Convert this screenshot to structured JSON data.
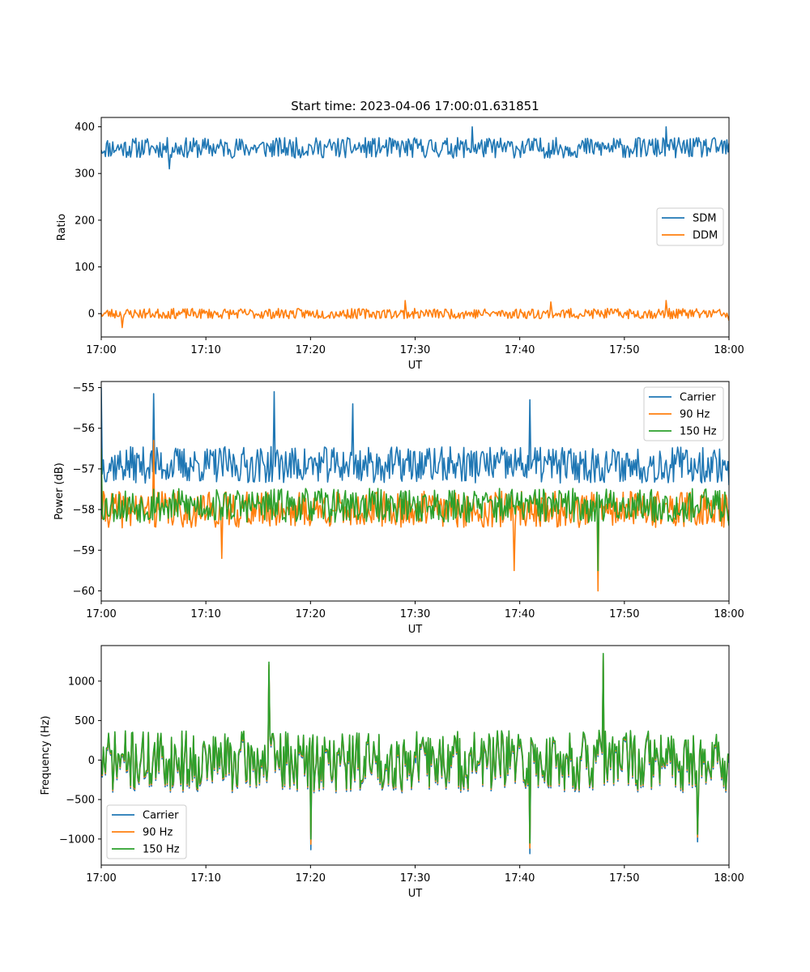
{
  "figure": {
    "title": "Start time: 2023-04-06 17:00:01.631851"
  },
  "colors": {
    "blue": "#1f77b4",
    "orange": "#ff7f0e",
    "green": "#2ca02c",
    "background": "#ffffff",
    "axes": "#000000"
  },
  "chart_data": [
    {
      "type": "line",
      "title": "Start time: 2023-04-06 17:00:01.631851",
      "xlabel": "UT",
      "ylabel": "Ratio",
      "xlim": [
        "17:00",
        "18:00"
      ],
      "ylim": [
        -50,
        420
      ],
      "xticks": [
        "17:00",
        "17:10",
        "17:20",
        "17:30",
        "17:40",
        "17:50",
        "18:00"
      ],
      "yticks": [
        0,
        100,
        200,
        300,
        400
      ],
      "grid": false,
      "legend": "center-right",
      "series": [
        {
          "name": "SDM",
          "color": "#1f77b4",
          "x": [
            "17:00",
            "17:05",
            "17:06:30",
            "17:10",
            "17:20",
            "17:27",
            "17:30",
            "17:35:30",
            "17:40",
            "17:45",
            "17:50",
            "17:54",
            "18:00"
          ],
          "values": [
            350,
            355,
            310,
            352,
            360,
            355,
            365,
            400,
            350,
            345,
            360,
            400,
            365
          ]
        },
        {
          "name": "DDM",
          "color": "#ff7f0e",
          "x": [
            "17:00",
            "17:02",
            "17:05",
            "17:10",
            "17:20",
            "17:29",
            "17:30",
            "17:40",
            "17:43",
            "17:50",
            "17:54",
            "18:00"
          ],
          "values": [
            0,
            -30,
            -5,
            5,
            -5,
            28,
            0,
            0,
            25,
            0,
            28,
            -15
          ]
        }
      ]
    },
    {
      "type": "line",
      "title": "",
      "xlabel": "UT",
      "ylabel": "Power (dB)",
      "xlim": [
        "17:00",
        "18:00"
      ],
      "ylim": [
        -60.25,
        -54.85
      ],
      "xticks": [
        "17:00",
        "17:10",
        "17:20",
        "17:30",
        "17:40",
        "17:50",
        "18:00"
      ],
      "yticks": [
        -55,
        -56,
        -57,
        -58,
        -59,
        -60
      ],
      "grid": false,
      "legend": "top-right",
      "series": [
        {
          "name": "Carrier",
          "color": "#1f77b4",
          "x": [
            "17:00",
            "17:05",
            "17:10",
            "17:16:30",
            "17:24",
            "17:30",
            "17:41",
            "17:50",
            "18:00"
          ],
          "values": [
            -55.0,
            -55.15,
            -57.0,
            -55.1,
            -55.4,
            -57.0,
            -55.3,
            -56.8,
            -57.4
          ]
        },
        {
          "name": "90 Hz",
          "color": "#ff7f0e",
          "x": [
            "17:00",
            "17:05",
            "17:11:30",
            "17:20",
            "17:30",
            "17:39:30",
            "17:47:30",
            "18:00"
          ],
          "values": [
            -57.5,
            -56.3,
            -59.2,
            -58.3,
            -58.0,
            -59.5,
            -60.0,
            -58.0
          ]
        },
        {
          "name": "150 Hz",
          "color": "#2ca02c",
          "x": [
            "17:00",
            "17:05",
            "17:10",
            "17:20",
            "17:30",
            "17:40",
            "17:47:30",
            "18:00"
          ],
          "values": [
            -56.5,
            -57.5,
            -58.0,
            -57.8,
            -58.0,
            -57.8,
            -59.5,
            -58.4
          ]
        }
      ]
    },
    {
      "type": "line",
      "title": "",
      "xlabel": "UT",
      "ylabel": "Frequency (Hz)",
      "xlim": [
        "17:00",
        "18:00"
      ],
      "ylim": [
        -1330,
        1450
      ],
      "xticks": [
        "17:00",
        "17:10",
        "17:20",
        "17:30",
        "17:40",
        "17:50",
        "18:00"
      ],
      "yticks": [
        1000,
        500,
        0,
        -500,
        -1000
      ],
      "grid": false,
      "legend": "bottom-left",
      "series": [
        {
          "name": "Carrier",
          "color": "#1f77b4",
          "x": [
            "17:00",
            "17:16",
            "17:20",
            "17:30",
            "17:41",
            "17:48",
            "17:57",
            "18:00"
          ],
          "values": [
            -50,
            1180,
            -1100,
            0,
            -1150,
            1300,
            -1000,
            0
          ]
        },
        {
          "name": "90 Hz",
          "color": "#ff7f0e",
          "x": [
            "17:00",
            "17:16",
            "17:20",
            "17:30",
            "17:41",
            "17:48",
            "17:57",
            "18:00"
          ],
          "values": [
            0,
            1220,
            -1050,
            50,
            -1100,
            1340,
            -960,
            50
          ]
        },
        {
          "name": "150 Hz",
          "color": "#2ca02c",
          "x": [
            "17:00",
            "17:16",
            "17:20",
            "17:30",
            "17:41",
            "17:48",
            "17:57",
            "18:00"
          ],
          "values": [
            0,
            1240,
            -1000,
            60,
            -1050,
            1350,
            -940,
            60
          ]
        }
      ]
    }
  ]
}
